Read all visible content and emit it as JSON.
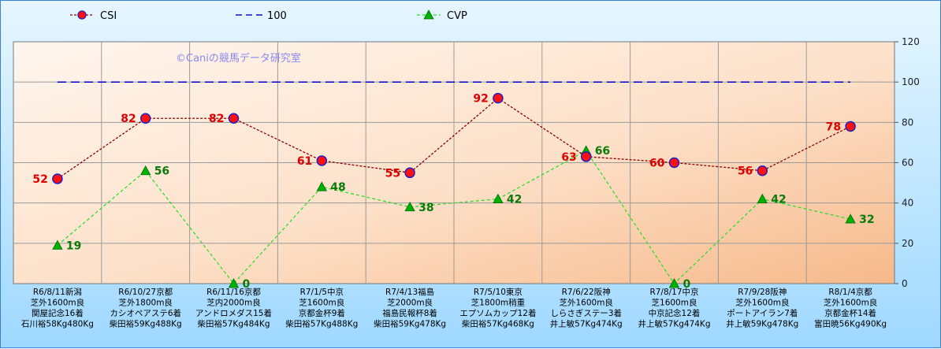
{
  "watermark": "©Caniの競馬データ研究室",
  "legend": [
    {
      "name": "CSI",
      "color": "#8b0000",
      "marker": "circle"
    },
    {
      "name": "100",
      "color": "#1010d0",
      "marker": "none"
    },
    {
      "name": "CVP",
      "color": "#22cc22",
      "marker": "triangle"
    }
  ],
  "chart_data": {
    "type": "line",
    "ylim": [
      0,
      120
    ],
    "yticks": [
      0,
      20,
      40,
      60,
      80,
      100,
      120
    ],
    "grid": true,
    "legend_position": "top-left",
    "categories": [
      [
        "R6/8/11新潟",
        "芝外1600m良",
        "関屋記念16着",
        "石川裕58Kg480Kg"
      ],
      [
        "R6/10/27京都",
        "芝外1800m良",
        "カシオペアステ6着",
        "柴田裕59Kg488Kg"
      ],
      [
        "R6/11/16京都",
        "芝内2000m良",
        "アンドロメダス15着",
        "柴田裕57Kg484Kg"
      ],
      [
        "R7/1/5中京",
        "芝1600m良",
        "京都金杯9着",
        "柴田裕57Kg488Kg"
      ],
      [
        "R7/4/13福島",
        "芝2000m良",
        "福島民報杯8着",
        "柴田裕59Kg478Kg"
      ],
      [
        "R7/5/10東京",
        "芝1800m稍重",
        "エプソムカップ12着",
        "柴田裕57Kg468Kg"
      ],
      [
        "R7/6/22阪神",
        "芝外1600m良",
        "しらさぎステー3着",
        "井上敏57Kg474Kg"
      ],
      [
        "R7/8/17中京",
        "芝1600m良",
        "中京記念12着",
        "井上敏57Kg474Kg"
      ],
      [
        "R7/9/28阪神",
        "芝外1600m良",
        "ポートアイラン7着",
        "井上敏59Kg478Kg"
      ],
      [
        "R8/1/4京都",
        "芝外1600m良",
        "京都金杯14着",
        "富田暁56Kg490Kg"
      ]
    ],
    "series": [
      {
        "name": "CSI",
        "values": [
          52,
          82,
          82,
          61,
          55,
          92,
          63,
          60,
          56,
          78
        ]
      },
      {
        "name": "100",
        "values": [
          100,
          100,
          100,
          100,
          100,
          100,
          100,
          100,
          100,
          100
        ]
      },
      {
        "name": "CVP",
        "values": [
          19,
          56,
          0,
          48,
          38,
          42,
          66,
          0,
          42,
          32
        ]
      }
    ]
  }
}
